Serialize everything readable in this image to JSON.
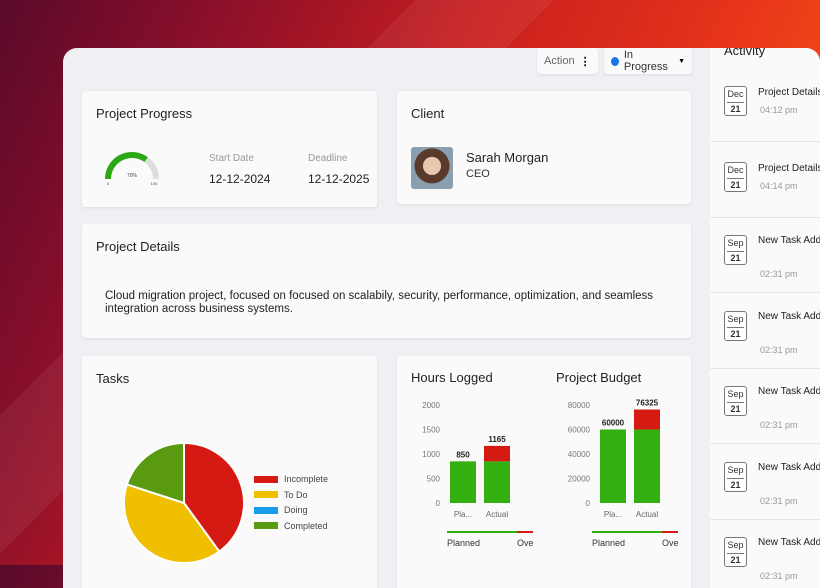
{
  "toolbar": {
    "action_label": "Action",
    "status_label": "In Progress",
    "status_color": "#1a73e8"
  },
  "progress": {
    "title": "Project Progress",
    "percent": 70,
    "percent_label": "70%",
    "min_label": "0",
    "max_label": "100",
    "start_label": "Start Date",
    "start_value": "12-12-2024",
    "deadline_label": "Deadline",
    "deadline_value": "12-12-2025"
  },
  "client": {
    "title": "Client",
    "name": "Sarah Morgan",
    "role": "CEO"
  },
  "details": {
    "title": "Project Details",
    "text": "Cloud migration project, focused on focused on scalabily, security, performance, optimization, and seamless integration across business systems."
  },
  "tasks": {
    "title": "Tasks"
  },
  "activity": {
    "title": "Activity",
    "items": [
      {
        "month": "Dec",
        "day": "21",
        "text": "Project Details",
        "time": "04:12 pm"
      },
      {
        "month": "Dec",
        "day": "21",
        "text": "Project Details",
        "time": "04:14 pm"
      },
      {
        "month": "Sep",
        "day": "21",
        "text": "New Task Added to Project.",
        "time": "02:31 pm"
      },
      {
        "month": "Sep",
        "day": "21",
        "text": "New Task Added to Project.",
        "time": "02:31 pm"
      },
      {
        "month": "Sep",
        "day": "21",
        "text": "New Task Added to Project.",
        "time": "02:31 pm"
      },
      {
        "month": "Sep",
        "day": "21",
        "text": "New Task Added to Project.",
        "time": "02:31 pm"
      },
      {
        "month": "Sep",
        "day": "21",
        "text": "New Task Added to Project.",
        "time": "02:31 pm"
      }
    ]
  },
  "chart_data": [
    {
      "type": "pie",
      "title": "Tasks",
      "legend": "right",
      "slices": [
        {
          "name": "Incomplete",
          "value": 40,
          "color": "#d41a12"
        },
        {
          "name": "To Do",
          "value": 40,
          "color": "#f0c000"
        },
        {
          "name": "Doing",
          "value": 0,
          "color": "#1a9be8"
        },
        {
          "name": "Completed",
          "value": 20,
          "color": "#5a9a10"
        }
      ]
    },
    {
      "type": "bar",
      "stacked": true,
      "title": "Hours Logged",
      "categories": [
        "Pla...",
        "Actual"
      ],
      "ylim": [
        0,
        2000
      ],
      "yticks": [
        0,
        500,
        1000,
        1500,
        2000
      ],
      "series": [
        {
          "name": "Planned",
          "values": [
            850,
            850
          ],
          "color": "#33b010"
        },
        {
          "name": "Ove",
          "values": [
            0,
            315
          ],
          "color": "#d41a12"
        }
      ],
      "totals": [
        "850",
        "1165"
      ],
      "legend": "bottom"
    },
    {
      "type": "bar",
      "stacked": true,
      "title": "Project Budget",
      "categories": [
        "Pla...",
        "Actual"
      ],
      "ylim": [
        0,
        80000
      ],
      "yticks": [
        0,
        20000,
        40000,
        60000,
        80000
      ],
      "series": [
        {
          "name": "Planned",
          "values": [
            60000,
            60000
          ],
          "color": "#33b010"
        },
        {
          "name": "Ove",
          "values": [
            0,
            16325
          ],
          "color": "#d41a12"
        }
      ],
      "totals": [
        "60000",
        "76325"
      ],
      "legend": "bottom"
    }
  ]
}
